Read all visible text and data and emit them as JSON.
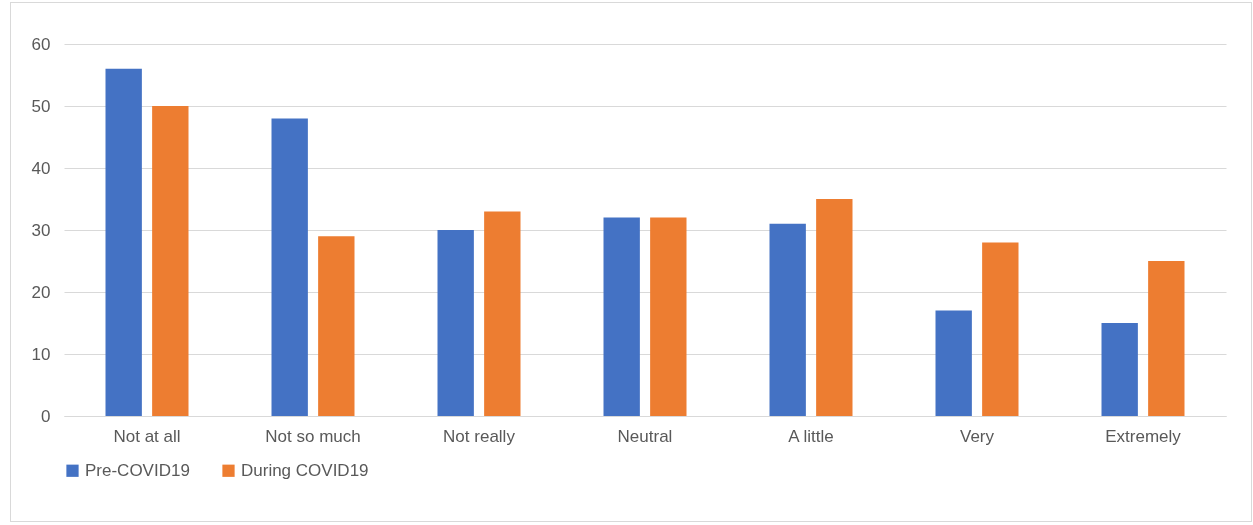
{
  "chart_data": {
    "type": "bar",
    "categories": [
      "Not at all",
      "Not so much",
      "Not really",
      "Neutral",
      "A little",
      "Very",
      "Extremely"
    ],
    "series": [
      {
        "name": "Pre-COVID19",
        "color": "#4472c4",
        "values": [
          56,
          48,
          30,
          32,
          31,
          17,
          15
        ]
      },
      {
        "name": "During COVID19",
        "color": "#ed7d31",
        "values": [
          50,
          29,
          33,
          32,
          35,
          28,
          25
        ]
      }
    ],
    "ylim": [
      0,
      60
    ],
    "yticks": [
      0,
      10,
      20,
      30,
      40,
      50,
      60
    ],
    "grid": "y",
    "legend": "bottom"
  }
}
